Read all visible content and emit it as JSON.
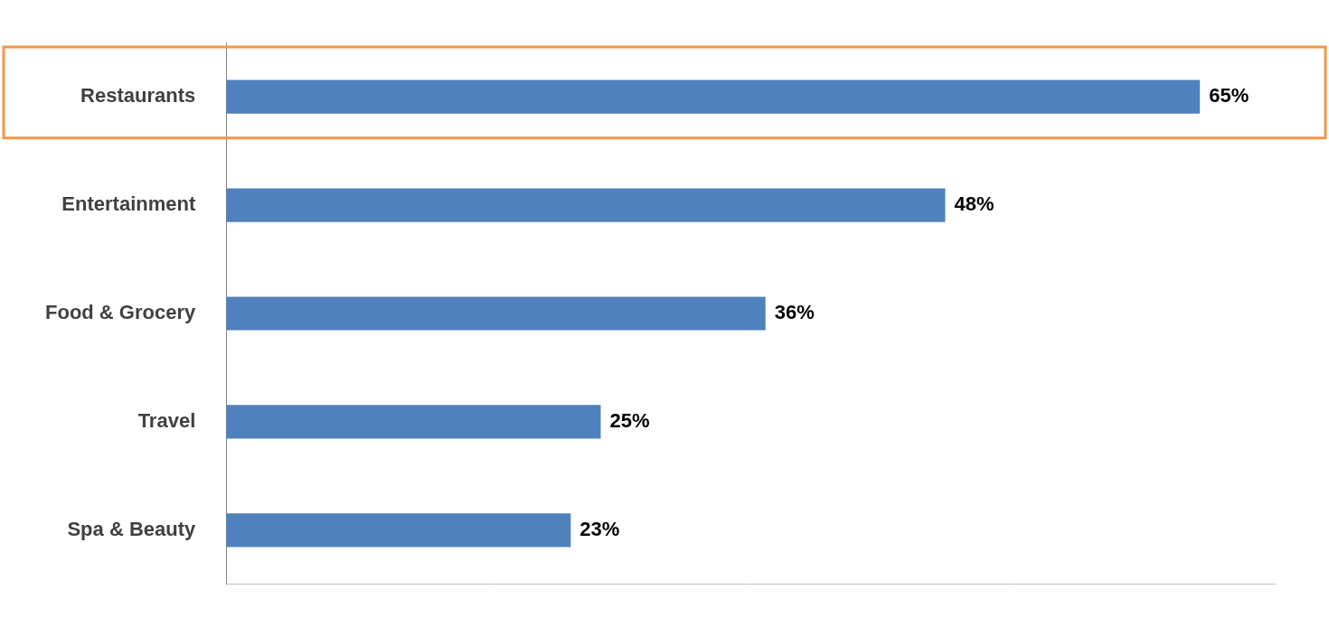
{
  "chart_data": {
    "type": "bar",
    "orientation": "horizontal",
    "categories": [
      "Restaurants",
      "Entertainment",
      "Food & Grocery",
      "Travel",
      "Spa & Beauty"
    ],
    "values": [
      65,
      48,
      36,
      25,
      23
    ],
    "value_labels": [
      "65%",
      "48%",
      "36%",
      "25%",
      "23%"
    ],
    "color": "#4f81bd",
    "xlim": [
      0,
      70
    ],
    "grid": false,
    "data_labels": true,
    "tick_labels": "y"
  }
}
